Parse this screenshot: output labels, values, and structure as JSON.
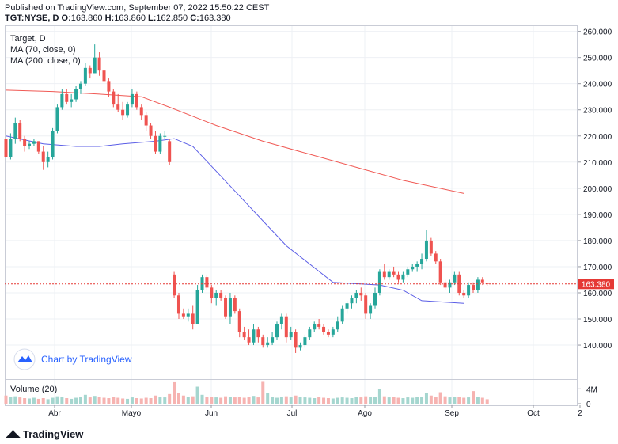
{
  "header": {
    "published": "Published on TradingView.com, September 07, 2022 15:50:22 CEST",
    "symbol": "TGT:NYSE, D",
    "o_label": "O:",
    "o": "163.860",
    "h_label": "H:",
    "h": "163.860",
    "l_label": "L:",
    "l": "162.850",
    "c_label": "C:",
    "c": "163.380"
  },
  "legend": {
    "title": "Target, D",
    "ma70": "MA (70, close, 0)",
    "ma200": "MA (200, close, 0)",
    "volume": "Volume (20)"
  },
  "watermark": "Chart by TradingView",
  "footer_brand": "TradingView",
  "colors": {
    "up": "#26a69a",
    "down": "#ef5350",
    "ma70": "#5b5ee6",
    "ma200": "#f05a55",
    "last": "#e53935"
  },
  "chart_data": {
    "type": "candlestick",
    "y_ticks": [
      "260.000",
      "250.000",
      "240.000",
      "230.000",
      "220.000",
      "210.000",
      "200.000",
      "190.000",
      "180.000",
      "170.000",
      "160.000",
      "150.000",
      "140.000"
    ],
    "ylim": [
      127,
      262
    ],
    "x_ticks": [
      "Abr",
      "Mayo",
      "Jun",
      "Jul",
      "Ago",
      "Sep",
      "Oct",
      "2"
    ],
    "volume_ticks": [
      "4M",
      "0"
    ],
    "last_price": "163.380",
    "candles": [
      [
        219,
        219,
        211,
        212
      ],
      [
        212,
        221,
        211,
        219
      ],
      [
        219,
        227,
        217,
        225
      ],
      [
        225,
        226,
        218,
        219
      ],
      [
        219,
        220,
        214,
        216
      ],
      [
        216,
        218,
        215,
        217
      ],
      [
        217,
        219,
        216,
        218
      ],
      [
        218,
        218,
        213,
        214
      ],
      [
        214,
        216,
        207,
        210
      ],
      [
        210,
        214,
        208,
        212
      ],
      [
        212,
        223,
        211,
        222
      ],
      [
        222,
        232,
        221,
        231
      ],
      [
        231,
        238,
        230,
        236
      ],
      [
        236,
        238,
        232,
        233
      ],
      [
        233,
        236,
        231,
        234
      ],
      [
        234,
        239,
        233,
        238
      ],
      [
        238,
        241,
        236,
        240
      ],
      [
        240,
        248,
        239,
        246
      ],
      [
        246,
        247,
        242,
        244
      ],
      [
        244,
        255,
        244,
        250
      ],
      [
        250,
        252,
        243,
        245
      ],
      [
        245,
        246,
        240,
        241
      ],
      [
        241,
        242,
        235,
        237
      ],
      [
        237,
        238,
        231,
        232
      ],
      [
        232,
        236,
        229,
        230
      ],
      [
        230,
        233,
        226,
        228
      ],
      [
        228,
        233,
        227,
        232
      ],
      [
        232,
        238,
        231,
        236
      ],
      [
        236,
        237,
        230,
        231
      ],
      [
        231,
        232,
        226,
        228
      ],
      [
        228,
        229,
        222,
        224
      ],
      [
        224,
        225,
        219,
        220
      ],
      [
        220,
        222,
        213,
        214
      ],
      [
        214,
        221,
        213,
        220
      ],
      [
        220,
        222,
        219,
        220
      ],
      [
        218,
        219,
        209,
        210
      ],
      [
        167,
        168,
        158,
        159
      ],
      [
        159,
        160,
        150,
        152
      ],
      [
        152,
        154,
        150,
        151
      ],
      [
        151,
        154,
        149,
        152
      ],
      [
        152,
        155,
        146,
        148
      ],
      [
        148,
        163,
        148,
        161
      ],
      [
        161,
        167,
        160,
        166
      ],
      [
        166,
        167,
        161,
        162
      ],
      [
        162,
        163,
        156,
        158
      ],
      [
        158,
        161,
        155,
        160
      ],
      [
        160,
        161,
        157,
        158
      ],
      [
        158,
        159,
        150,
        151
      ],
      [
        151,
        160,
        148,
        158
      ],
      [
        158,
        159,
        152,
        153
      ],
      [
        153,
        154,
        143,
        145
      ],
      [
        145,
        147,
        142,
        143
      ],
      [
        143,
        146,
        140,
        141
      ],
      [
        141,
        148,
        140,
        146
      ],
      [
        146,
        147,
        141,
        143
      ],
      [
        143,
        144,
        139,
        140
      ],
      [
        140,
        143,
        139,
        141
      ],
      [
        141,
        145,
        140,
        143
      ],
      [
        143,
        149,
        142,
        148
      ],
      [
        148,
        152,
        146,
        151
      ],
      [
        151,
        152,
        141,
        143
      ],
      [
        143,
        147,
        142,
        145
      ],
      [
        145,
        146,
        137,
        139
      ],
      [
        139,
        141,
        138,
        140
      ],
      [
        140,
        144,
        139,
        143
      ],
      [
        143,
        147,
        142,
        146
      ],
      [
        146,
        149,
        145,
        148
      ],
      [
        148,
        150,
        146,
        147
      ],
      [
        147,
        148,
        144,
        145
      ],
      [
        145,
        146,
        143,
        144
      ],
      [
        144,
        147,
        143,
        146
      ],
      [
        146,
        151,
        145,
        149
      ],
      [
        149,
        155,
        148,
        154
      ],
      [
        154,
        157,
        152,
        156
      ],
      [
        156,
        159,
        154,
        158
      ],
      [
        158,
        161,
        156,
        160
      ],
      [
        160,
        162,
        157,
        159
      ],
      [
        159,
        160,
        150,
        152
      ],
      [
        152,
        156,
        150,
        155
      ],
      [
        155,
        162,
        154,
        160
      ],
      [
        160,
        169,
        159,
        168
      ],
      [
        168,
        171,
        165,
        166
      ],
      [
        166,
        169,
        165,
        168
      ],
      [
        168,
        170,
        166,
        167
      ],
      [
        167,
        168,
        164,
        165
      ],
      [
        165,
        168,
        164,
        167
      ],
      [
        167,
        170,
        166,
        169
      ],
      [
        169,
        171,
        168,
        170
      ],
      [
        170,
        172,
        168,
        171
      ],
      [
        171,
        175,
        169,
        173
      ],
      [
        173,
        184,
        172,
        180
      ],
      [
        180,
        181,
        174,
        175
      ],
      [
        175,
        176,
        171,
        172
      ],
      [
        172,
        173,
        163,
        164
      ],
      [
        164,
        165,
        161,
        162
      ],
      [
        162,
        165,
        160,
        164
      ],
      [
        164,
        168,
        163,
        167
      ],
      [
        167,
        168,
        159,
        160
      ],
      [
        160,
        161,
        158,
        159
      ],
      [
        159,
        164,
        158,
        163
      ],
      [
        163,
        164,
        160,
        161
      ],
      [
        161,
        166,
        160,
        165
      ],
      [
        165,
        166,
        163,
        164
      ],
      [
        163.86,
        163.86,
        162.85,
        163.38
      ]
    ],
    "volumes": [
      2.2,
      1.8,
      2.0,
      1.7,
      1.5,
      1.4,
      1.6,
      1.3,
      1.5,
      1.2,
      1.6,
      2.0,
      1.8,
      1.5,
      1.3,
      1.6,
      1.8,
      2.4,
      1.7,
      2.1,
      1.9,
      1.6,
      1.5,
      1.8,
      1.6,
      1.4,
      1.3,
      1.7,
      1.5,
      1.4,
      1.6,
      1.5,
      2.2,
      1.9,
      1.7,
      2.6,
      5.8,
      3.0,
      2.2,
      1.8,
      2.0,
      4.6,
      2.4,
      1.9,
      1.8,
      1.7,
      1.6,
      2.0,
      1.9,
      1.7,
      1.8,
      1.6,
      1.9,
      2.1,
      1.7,
      5.9,
      2.8,
      1.9,
      1.6,
      1.8,
      2.0,
      1.7,
      2.2,
      1.8,
      1.7,
      1.6,
      1.5,
      1.8,
      1.6,
      1.5,
      1.4,
      1.6,
      1.7,
      1.6,
      1.5,
      1.8,
      1.7,
      2.0,
      1.9,
      1.8,
      3.9,
      2.0,
      1.7,
      1.8,
      1.6,
      1.5,
      1.7,
      1.6,
      1.8,
      1.9,
      2.8,
      2.2,
      1.8,
      3.1,
      2.0,
      1.7,
      1.9,
      1.8,
      1.6,
      1.7,
      3.4,
      1.9,
      1.6,
      1.2
    ],
    "ma70": [
      [
        0,
        220
      ],
      [
        8,
        217
      ],
      [
        15,
        216
      ],
      [
        20,
        216
      ],
      [
        25,
        217
      ],
      [
        32,
        218
      ],
      [
        36,
        219
      ],
      [
        40,
        216
      ],
      [
        50,
        197
      ],
      [
        60,
        178
      ],
      [
        70,
        164
      ],
      [
        80,
        163
      ],
      [
        85,
        161
      ],
      [
        89,
        157
      ],
      [
        98,
        156
      ]
    ],
    "ma200": [
      [
        0,
        237.5
      ],
      [
        10,
        237
      ],
      [
        20,
        236
      ],
      [
        29,
        235
      ],
      [
        35,
        231
      ],
      [
        45,
        224
      ],
      [
        55,
        218
      ],
      [
        65,
        213
      ],
      [
        75,
        208
      ],
      [
        85,
        203
      ],
      [
        98,
        198
      ]
    ]
  }
}
